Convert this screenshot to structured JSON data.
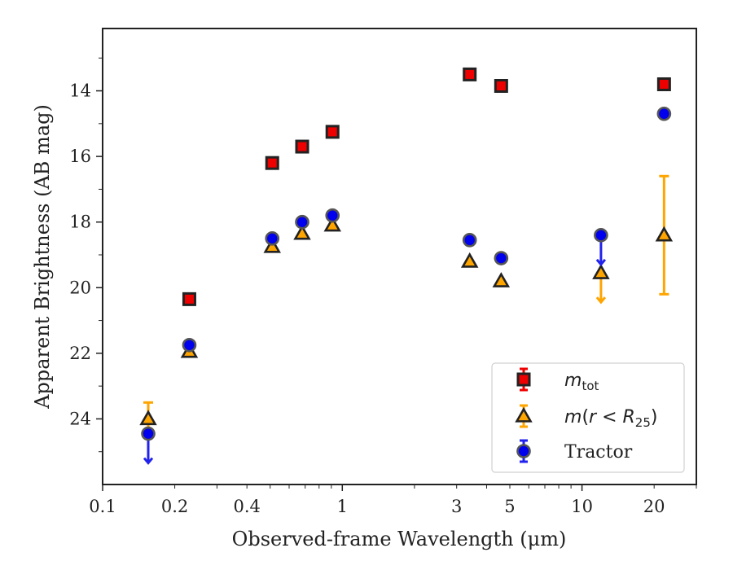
{
  "chart_data": {
    "type": "scatter",
    "xlabel": "Observed-frame Wavelength (μm)",
    "ylabel": "Apparent Brightness (AB mag)",
    "xscale": "log",
    "xlim": [
      0.1,
      30
    ],
    "ylim": [
      26.0,
      12.1
    ],
    "y_inverted": true,
    "xticks": [
      0.1,
      0.2,
      0.4,
      1,
      3,
      5,
      10,
      20
    ],
    "xtick_labels": [
      "0.1",
      "0.2",
      "0.4",
      "1",
      "3",
      "5",
      "10",
      "20"
    ],
    "yticks": [
      14,
      16,
      18,
      20,
      22,
      24
    ],
    "ytick_labels": [
      "14",
      "16",
      "18",
      "20",
      "22",
      "24"
    ],
    "grid": false,
    "legend_position": "lower-right",
    "series": [
      {
        "name": "m_tot",
        "marker": "square",
        "color": "#ee0000",
        "edge_color": "#222222",
        "points": [
          {
            "x": 0.23,
            "y": 20.35
          },
          {
            "x": 0.51,
            "y": 16.2
          },
          {
            "x": 0.68,
            "y": 15.7
          },
          {
            "x": 0.91,
            "y": 15.25
          },
          {
            "x": 3.4,
            "y": 13.5
          },
          {
            "x": 4.6,
            "y": 13.85
          },
          {
            "x": 22,
            "y": 13.8
          }
        ]
      },
      {
        "name": "m(r<R25)",
        "marker": "triangle",
        "color": "#ffa500",
        "edge_color": "#222222",
        "points": [
          {
            "x": 0.155,
            "y": 24.0,
            "err": 0.5
          },
          {
            "x": 0.23,
            "y": 21.95
          },
          {
            "x": 0.51,
            "y": 18.75
          },
          {
            "x": 0.68,
            "y": 18.35
          },
          {
            "x": 0.91,
            "y": 18.1
          },
          {
            "x": 3.4,
            "y": 19.2
          },
          {
            "x": 4.6,
            "y": 19.8
          },
          {
            "x": 12,
            "y": 19.55,
            "upper_limit": true
          },
          {
            "x": 22,
            "y": 18.4,
            "err": 1.8
          }
        ]
      },
      {
        "name": "Tractor",
        "marker": "circle",
        "color": "#0000ee",
        "edge_color": "#555555",
        "points": [
          {
            "x": 0.155,
            "y": 24.45,
            "upper_limit": true
          },
          {
            "x": 0.23,
            "y": 21.75
          },
          {
            "x": 0.51,
            "y": 18.5
          },
          {
            "x": 0.68,
            "y": 18.0
          },
          {
            "x": 0.91,
            "y": 17.8
          },
          {
            "x": 3.4,
            "y": 18.55
          },
          {
            "x": 4.6,
            "y": 19.1
          },
          {
            "x": 12,
            "y": 18.4,
            "upper_limit": true
          },
          {
            "x": 22,
            "y": 14.7
          }
        ]
      }
    ]
  }
}
